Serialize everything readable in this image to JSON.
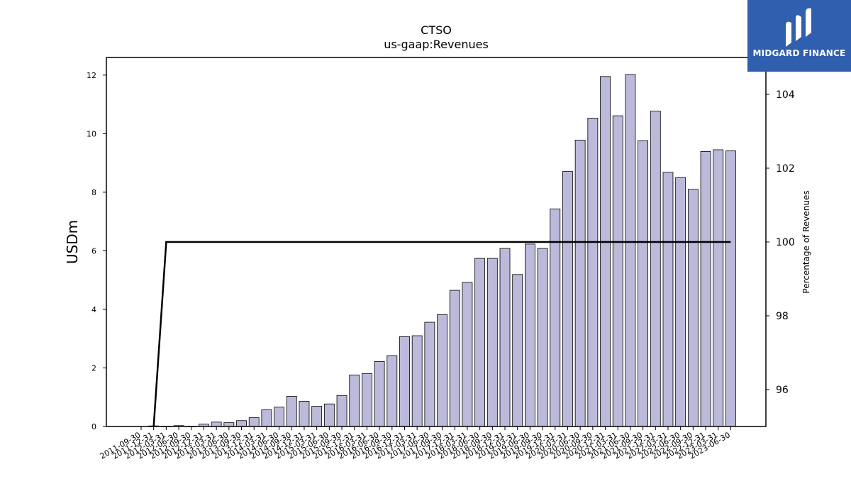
{
  "brand": {
    "name": "MIDGARD FINANCE",
    "bg_color": "#2f5fae",
    "icon": "midgard-logo-icon"
  },
  "chart_data": {
    "type": "bar",
    "title": "CTSO",
    "subtitle": "us-gaap:Revenues",
    "ylabel": "USDm",
    "y2label": "Percentage of Revenues",
    "ylim": [
      0,
      12.6
    ],
    "y2lim": [
      95.0,
      105.0
    ],
    "yticks": [
      0,
      2,
      4,
      6,
      8,
      10,
      12
    ],
    "y2ticks": [
      96,
      98,
      100,
      102,
      104
    ],
    "bar_color": "#bcbadb",
    "line_color": "#000000",
    "categories": [
      "2011-09-30",
      "2011-12-31",
      "2012-03-31",
      "2012-06-30",
      "2012-09-30",
      "2012-12-31",
      "2013-03-31",
      "2013-06-30",
      "2013-09-30",
      "2013-12-31",
      "2014-03-31",
      "2014-06-30",
      "2014-09-30",
      "2014-12-31",
      "2015-03-31",
      "2015-06-30",
      "2015-09-30",
      "2015-12-31",
      "2016-03-31",
      "2016-06-30",
      "2016-09-30",
      "2016-12-31",
      "2017-03-31",
      "2017-06-30",
      "2017-09-30",
      "2017-12-31",
      "2018-03-31",
      "2018-06-30",
      "2018-09-30",
      "2018-12-31",
      "2019-03-31",
      "2019-06-30",
      "2019-09-30",
      "2019-12-31",
      "2020-03-31",
      "2020-06-30",
      "2020-09-30",
      "2020-12-31",
      "2021-03-31",
      "2021-06-30",
      "2021-09-30",
      "2021-12-31",
      "2022-03-31",
      "2022-06-30",
      "2022-09-30",
      "2022-12-31",
      "2023-03-31",
      "2023-06-30"
    ],
    "series": [
      {
        "type": "bar",
        "axis": "left",
        "values": [
          null,
          0.02,
          0.0,
          0.03,
          0.0,
          0.08,
          0.15,
          0.13,
          0.2,
          0.3,
          0.57,
          0.66,
          1.03,
          0.86,
          0.69,
          0.77,
          1.06,
          1.76,
          1.81,
          2.22,
          2.42,
          3.07,
          3.1,
          3.56,
          3.82,
          4.65,
          4.92,
          5.74,
          5.74,
          6.08,
          5.19,
          6.23,
          6.08,
          7.43,
          8.71,
          9.78,
          10.53,
          11.95,
          10.61,
          12.02,
          9.76,
          10.77,
          8.68,
          8.5,
          8.1,
          9.39,
          9.45,
          9.41
        ]
      },
      {
        "type": "line",
        "axis": "right",
        "values": [
          null,
          95.0,
          100,
          100,
          100,
          100,
          100,
          100,
          100,
          100,
          100,
          100,
          100,
          100,
          100,
          100,
          100,
          100,
          100,
          100,
          100,
          100,
          100,
          100,
          100,
          100,
          100,
          100,
          100,
          100,
          100,
          100,
          100,
          100,
          100,
          100,
          100,
          100,
          100,
          100,
          100,
          100,
          100,
          100,
          100,
          100,
          100,
          100
        ]
      }
    ]
  }
}
